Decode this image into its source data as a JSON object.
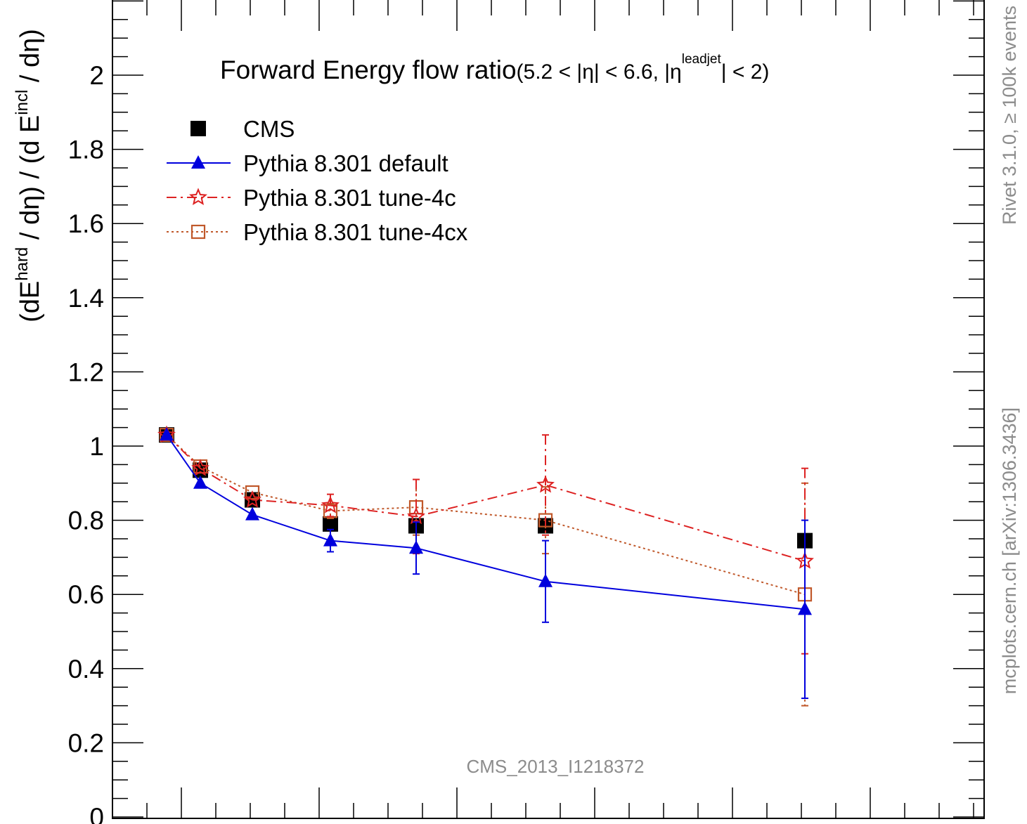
{
  "chart_data": {
    "type": "line",
    "title": "Forward Energy flow ratio",
    "title_sub": "(5.2 < |η| < 6.6, |η",
    "title_sup": "leadjet",
    "title_end": "| < 2)",
    "ylabel": "(dE^hard / dη) / (d E^incl / dη)",
    "ylim": [
      0,
      2.2
    ],
    "y_ticks": [
      0,
      0.2,
      0.4,
      0.6,
      0.8,
      1,
      1.2,
      1.4,
      1.6,
      1.8,
      2
    ],
    "y_tick_labels": [
      "0",
      "0.2",
      "0.4",
      "0.6",
      "0.8",
      "1",
      "1.2",
      "1.4",
      "1.6",
      "1.8",
      "2"
    ],
    "grid": false,
    "legend_position": "top-left",
    "analysis_label": "CMS_2013_I1218372",
    "side_label_top": "Rivet 3.1.0,  ≥ 100k events",
    "side_label_bottom": "mcplots.cern.ch [arXiv:1306.3436]",
    "series": [
      {
        "name": "CMS",
        "marker": "square-filled",
        "color": "#000000",
        "line": "none",
        "x": [
          1,
          2,
          3,
          4,
          5,
          6,
          7
        ],
        "y": [
          1.03,
          0.935,
          0.855,
          0.79,
          0.785,
          0.785,
          0.745
        ]
      },
      {
        "name": "Pythia 8.301 default",
        "marker": "triangle-filled",
        "color": "#0000dd",
        "line": "solid",
        "x": [
          1,
          2,
          3,
          4,
          5,
          6,
          7
        ],
        "y": [
          1.03,
          0.9,
          0.815,
          0.745,
          0.725,
          0.635,
          0.56
        ],
        "yerr": [
          0,
          0,
          0,
          0.03,
          0.07,
          0.11,
          0.24
        ]
      },
      {
        "name": "Pythia 8.301 tune-4c",
        "marker": "star-open",
        "color": "#dd2222",
        "line": "dashdot",
        "x": [
          1,
          2,
          3,
          4,
          5,
          6,
          7
        ],
        "y": [
          1.03,
          0.94,
          0.855,
          0.84,
          0.81,
          0.895,
          0.69
        ],
        "yerr": [
          0,
          0,
          0,
          0.03,
          0.1,
          0.135,
          0.25
        ]
      },
      {
        "name": "Pythia 8.301 tune-4cx",
        "marker": "square-open",
        "color": "#c0582a",
        "line": "dotted",
        "x": [
          1,
          2,
          3,
          4,
          5,
          6,
          7
        ],
        "y": [
          1.03,
          0.945,
          0.875,
          0.825,
          0.835,
          0.8,
          0.6
        ],
        "yerr": [
          0,
          0,
          0,
          0.02,
          0.075,
          0.09,
          0.3
        ]
      }
    ]
  }
}
